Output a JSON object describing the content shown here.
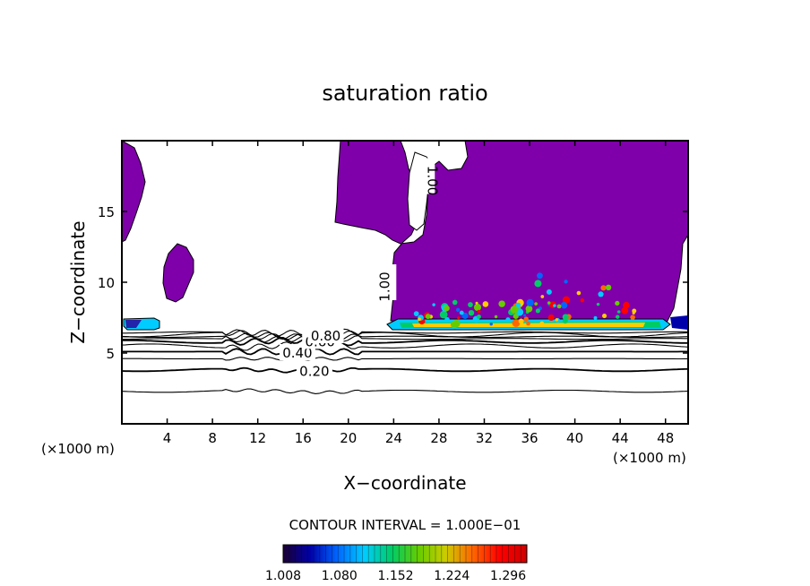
{
  "chart_data": {
    "type": "contour",
    "title": "saturation ratio",
    "xlabel": "X−coordinate",
    "ylabel": "Z−coordinate",
    "x_unit_left": "(×1000 m)",
    "x_unit_right": "(×1000 m)",
    "xlim": [
      0,
      50
    ],
    "ylim": [
      0,
      20
    ],
    "x_ticks": [
      4,
      8,
      12,
      16,
      20,
      24,
      28,
      32,
      36,
      40,
      44,
      48
    ],
    "y_ticks": [
      5,
      10,
      15
    ],
    "grid": false,
    "contour_interval_text": "CONTOUR INTERVAL = 1.000E−01",
    "contour_levels": [
      0.1,
      0.2,
      0.3,
      0.4,
      0.5,
      0.6,
      0.7,
      0.8,
      0.9,
      1.0
    ],
    "contour_line_heights": [
      2.3,
      3.8,
      4.6,
      5.1,
      5.5,
      5.8,
      6.0,
      6.15,
      6.3,
      6.45
    ],
    "contour_labels": [
      {
        "text": "0.20",
        "x": 17.0,
        "y": 3.7
      },
      {
        "text": "0.40",
        "x": 15.5,
        "y": 5.0
      },
      {
        "text": "0.60",
        "x": 17.5,
        "y": 5.8
      },
      {
        "text": "0.80",
        "x": 18.0,
        "y": 6.2
      },
      {
        "text": "1.00",
        "x": 23.6,
        "y": 10.0
      },
      {
        "text": "1.00",
        "x": 27.0,
        "y": 17.5
      }
    ],
    "saturated_color": "#7f00aa",
    "colorbar": {
      "labels": [
        "1.008",
        "1.080",
        "1.152",
        "1.224",
        "1.296"
      ],
      "min": 1.008,
      "max": 1.32,
      "colors": [
        "#1a0033",
        "#0000aa",
        "#0066ff",
        "#00ccff",
        "#00cc66",
        "#66cc00",
        "#cccc00",
        "#ff6600",
        "#ff0000",
        "#cc0000"
      ]
    }
  }
}
